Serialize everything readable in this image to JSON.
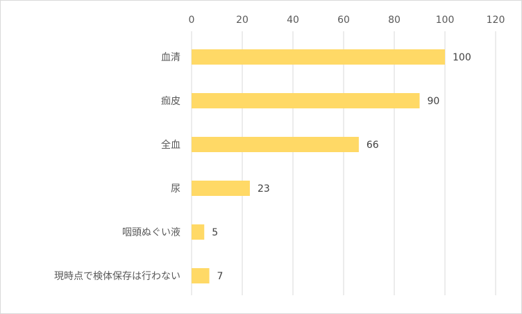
{
  "chart_data": {
    "type": "bar",
    "orientation": "horizontal",
    "categories": [
      "血清",
      "痂皮",
      "全血",
      "尿",
      "咽頭ぬぐい液",
      "現時点で検体保存は行わない"
    ],
    "values": [
      100,
      90,
      66,
      23,
      5,
      7
    ],
    "data_labels": [
      "100",
      "90",
      "66",
      "23",
      "5",
      "7"
    ],
    "xlim": [
      0,
      120
    ],
    "x_ticks": [
      0,
      20,
      40,
      60,
      80,
      100,
      120
    ],
    "x_tick_labels": [
      "0",
      "20",
      "40",
      "60",
      "80",
      "100",
      "120"
    ],
    "x_axis_position": "top",
    "grid": true,
    "legend": "none",
    "title": "",
    "xlabel": "",
    "ylabel": "",
    "colors": {
      "bar": "#ffd966",
      "grid": "#d9d9d9",
      "text": "#595959"
    }
  }
}
